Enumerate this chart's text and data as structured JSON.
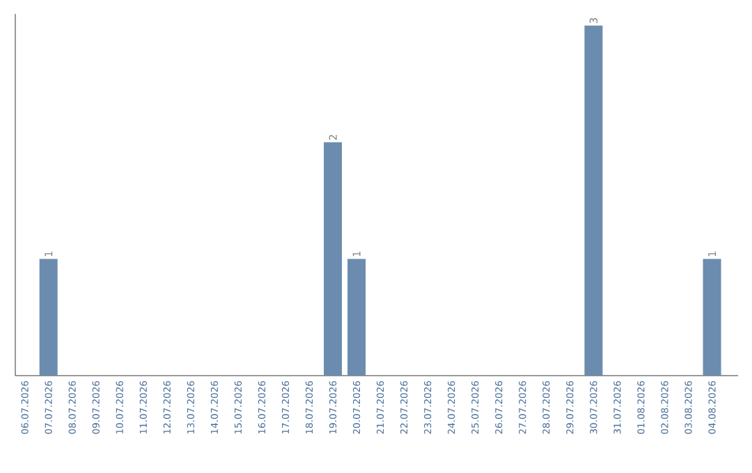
{
  "chart_data": {
    "type": "bar",
    "categories": [
      "06.07.2026",
      "07.07.2026",
      "08.07.2026",
      "09.07.2026",
      "10.07.2026",
      "11.07.2026",
      "12.07.2026",
      "13.07.2026",
      "14.07.2026",
      "15.07.2026",
      "16.07.2026",
      "17.07.2026",
      "18.07.2026",
      "19.07.2026",
      "20.07.2026",
      "21.07.2026",
      "22.07.2026",
      "23.07.2026",
      "24.07.2026",
      "25.07.2026",
      "26.07.2026",
      "27.07.2026",
      "28.07.2026",
      "29.07.2026",
      "30.07.2026",
      "31.07.2026",
      "01.08.2026",
      "02.08.2026",
      "03.08.2026",
      "04.08.2026"
    ],
    "values": [
      0,
      1,
      0,
      0,
      0,
      0,
      0,
      0,
      0,
      0,
      0,
      0,
      0,
      2,
      1,
      0,
      0,
      0,
      0,
      0,
      0,
      0,
      0,
      0,
      3,
      0,
      0,
      0,
      0,
      1
    ],
    "value_labels": [
      null,
      "1",
      null,
      null,
      null,
      null,
      null,
      null,
      null,
      null,
      null,
      null,
      null,
      "2",
      "1",
      null,
      null,
      null,
      null,
      null,
      null,
      null,
      null,
      null,
      "3",
      null,
      null,
      null,
      null,
      "1"
    ],
    "color": "#6b8cae",
    "ylim": [
      0,
      3.1
    ],
    "tick_labels": "x"
  }
}
